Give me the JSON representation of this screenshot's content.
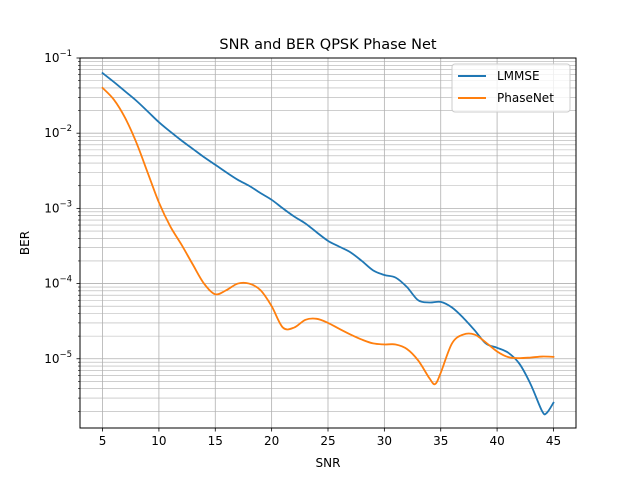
{
  "chart_data": {
    "type": "line",
    "title": "SNR and BER QPSK Phase Net",
    "xlabel": "SNR",
    "ylabel": "BER",
    "xlim": [
      3,
      47
    ],
    "ylim": [
      1.2e-06,
      0.1
    ],
    "yscale": "log",
    "grid": "both (major and minor)",
    "legend_position": "top-right",
    "x_ticks": [
      5,
      10,
      15,
      20,
      25,
      30,
      35,
      40,
      45
    ],
    "y_ticks": [
      {
        "value": 1e-05,
        "base": "10",
        "exp": "−5"
      },
      {
        "value": 0.0001,
        "base": "10",
        "exp": "−4"
      },
      {
        "value": 0.001,
        "base": "10",
        "exp": "−3"
      },
      {
        "value": 0.01,
        "base": "10",
        "exp": "−2"
      },
      {
        "value": 0.1,
        "base": "10",
        "exp": "−1"
      }
    ],
    "series": [
      {
        "name": "LMMSE",
        "color": "#1f77b4",
        "x": [
          5,
          6,
          7,
          8,
          9,
          10,
          11,
          12,
          13,
          14,
          15,
          16,
          17,
          18,
          19,
          20,
          21,
          22,
          23,
          24,
          25,
          26,
          27,
          28,
          29,
          30,
          31,
          32,
          33,
          34,
          35,
          36,
          37,
          38,
          39,
          40,
          41,
          42,
          43,
          44,
          44.4,
          45
        ],
        "y": [
          0.063,
          0.048,
          0.036,
          0.027,
          0.0195,
          0.014,
          0.0105,
          0.008,
          0.0062,
          0.0048,
          0.0038,
          0.003,
          0.0024,
          0.002,
          0.0016,
          0.0013,
          0.001,
          0.00078,
          0.00063,
          0.00048,
          0.00037,
          0.00031,
          0.00026,
          0.0002,
          0.00015,
          0.00013,
          0.00012,
          9e-05,
          6e-05,
          5.6e-05,
          5.7e-05,
          4.8e-05,
          3.5e-05,
          2.4e-05,
          1.6e-05,
          1.4e-05,
          1.2e-05,
          8.5e-06,
          4.5e-06,
          2e-06,
          1.9e-06,
          2.6e-06
        ]
      },
      {
        "name": "PhaseNet",
        "color": "#ff7f0e",
        "x": [
          5,
          6,
          7,
          8,
          9,
          10,
          11,
          12,
          13,
          14,
          15,
          16,
          17,
          18,
          19,
          20,
          21,
          22,
          23,
          24,
          25,
          26,
          27,
          28,
          29,
          30,
          31,
          32,
          33,
          34,
          34.5,
          35,
          36,
          37,
          38,
          39,
          40,
          41,
          42,
          43,
          44,
          45
        ],
        "y": [
          0.04,
          0.028,
          0.016,
          0.0075,
          0.003,
          0.0012,
          0.00058,
          0.00033,
          0.00018,
          0.0001,
          7.2e-05,
          8.2e-05,
          0.0001,
          0.0001,
          8.2e-05,
          5e-05,
          2.6e-05,
          2.6e-05,
          3.3e-05,
          3.4e-05,
          3e-05,
          2.5e-05,
          2.1e-05,
          1.8e-05,
          1.6e-05,
          1.55e-05,
          1.55e-05,
          1.35e-05,
          9.5e-06,
          5.5e-06,
          4.6e-06,
          6.5e-06,
          1.6e-05,
          2.1e-05,
          2.1e-05,
          1.65e-05,
          1.25e-05,
          1.05e-05,
          1.02e-05,
          1.04e-05,
          1.07e-05,
          1.06e-05
        ]
      }
    ]
  }
}
